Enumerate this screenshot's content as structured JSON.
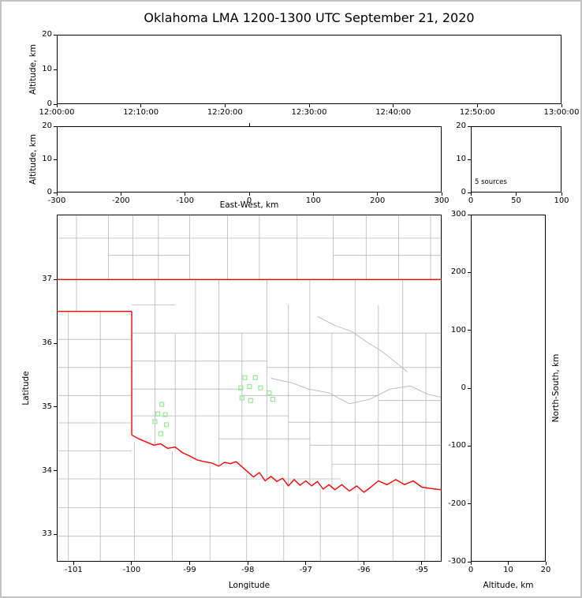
{
  "title": "Oklahoma LMA 1200-1300 UTC September 21, 2020",
  "colors": {
    "county": "#b8b8b8",
    "river": "#b8b8b8",
    "state_border": "#ff0000",
    "marker": "#90EE90",
    "frame": "#000000"
  },
  "chart_data": [
    {
      "id": "time_height",
      "type": "scatter",
      "xlabel": "",
      "ylabel": "Altitude, km",
      "xlim": [
        0,
        3600
      ],
      "ylim": [
        0,
        20
      ],
      "xticks": [
        {
          "v": 0,
          "label": "12:00:00"
        },
        {
          "v": 600,
          "label": "12:10:00"
        },
        {
          "v": 1200,
          "label": "12:20:00"
        },
        {
          "v": 1800,
          "label": "12:30:00"
        },
        {
          "v": 2400,
          "label": "12:40:00"
        },
        {
          "v": 3000,
          "label": "12:50:00"
        },
        {
          "v": 3600,
          "label": "13:00:00"
        }
      ],
      "yticks": [
        0,
        10,
        20
      ],
      "points": []
    },
    {
      "id": "ew_height",
      "type": "scatter",
      "xlabel": "East-West, km",
      "ylabel": "Altitude, km",
      "xlim": [
        -300,
        300
      ],
      "ylim": [
        0,
        20
      ],
      "xticks": [
        -300,
        -200,
        -100,
        0,
        100,
        200,
        300
      ],
      "top_ticks": [
        0
      ],
      "yticks": [
        0,
        10,
        20
      ],
      "points": []
    },
    {
      "id": "alt_histogram",
      "type": "scatter",
      "xlabel": "",
      "ylabel": "",
      "xlim": [
        0,
        100
      ],
      "ylim": [
        0,
        20
      ],
      "xticks": [
        0,
        50,
        100
      ],
      "yticks": [
        0,
        10,
        20
      ],
      "annotation": "5 sources",
      "points": []
    },
    {
      "id": "map",
      "type": "scatter",
      "xlabel": "Longitude",
      "ylabel": "Latitude",
      "xlim": [
        -101.29,
        -94.66
      ],
      "ylim": [
        32.57,
        38.02
      ],
      "xticks": [
        -101,
        -100,
        -99,
        -98,
        -97,
        -96,
        -95
      ],
      "yticks": [
        33,
        34,
        35,
        36,
        37
      ],
      "marker": {
        "shape": "open-square",
        "size": 5
      },
      "points": [
        [
          -98.05,
          35.46
        ],
        [
          -97.87,
          35.46
        ],
        [
          -98.12,
          35.3
        ],
        [
          -97.97,
          35.32
        ],
        [
          -97.78,
          35.3
        ],
        [
          -98.1,
          35.14
        ],
        [
          -97.95,
          35.1
        ],
        [
          -97.63,
          35.22
        ],
        [
          -97.57,
          35.12
        ],
        [
          -99.48,
          35.04
        ],
        [
          -99.55,
          34.89
        ],
        [
          -99.42,
          34.88
        ],
        [
          -99.6,
          34.77
        ],
        [
          -99.4,
          34.72
        ],
        [
          -99.5,
          34.58
        ]
      ],
      "state_border": [
        [
          [
            -101.29,
            37.0
          ],
          [
            -94.66,
            37.0
          ]
        ],
        [
          [
            -101.29,
            36.5
          ],
          [
            -100.0,
            36.5
          ]
        ],
        [
          [
            -100.0,
            36.5
          ],
          [
            -100.0,
            34.56
          ]
        ],
        [
          [
            -100.0,
            34.56
          ],
          [
            -99.88,
            34.5
          ],
          [
            -99.75,
            34.45
          ],
          [
            -99.62,
            34.4
          ],
          [
            -99.5,
            34.42
          ],
          [
            -99.38,
            34.35
          ],
          [
            -99.25,
            34.37
          ],
          [
            -99.12,
            34.28
          ],
          [
            -99.0,
            34.23
          ],
          [
            -98.88,
            34.17
          ],
          [
            -98.75,
            34.14
          ],
          [
            -98.62,
            34.12
          ],
          [
            -98.5,
            34.07
          ],
          [
            -98.4,
            34.13
          ],
          [
            -98.3,
            34.11
          ],
          [
            -98.2,
            34.14
          ],
          [
            -98.1,
            34.06
          ],
          [
            -98.0,
            33.98
          ],
          [
            -97.9,
            33.9
          ],
          [
            -97.8,
            33.97
          ],
          [
            -97.7,
            33.84
          ],
          [
            -97.6,
            33.91
          ],
          [
            -97.5,
            33.83
          ],
          [
            -97.4,
            33.88
          ],
          [
            -97.3,
            33.76
          ],
          [
            -97.2,
            33.86
          ],
          [
            -97.1,
            33.77
          ],
          [
            -97.0,
            33.84
          ],
          [
            -96.9,
            33.76
          ],
          [
            -96.8,
            33.83
          ],
          [
            -96.7,
            33.71
          ],
          [
            -96.6,
            33.78
          ],
          [
            -96.5,
            33.7
          ],
          [
            -96.38,
            33.78
          ],
          [
            -96.25,
            33.68
          ],
          [
            -96.12,
            33.76
          ],
          [
            -96.0,
            33.66
          ],
          [
            -95.88,
            33.74
          ],
          [
            -95.75,
            33.84
          ],
          [
            -95.6,
            33.78
          ],
          [
            -95.45,
            33.86
          ],
          [
            -95.3,
            33.78
          ],
          [
            -95.15,
            33.84
          ],
          [
            -95.0,
            33.74
          ],
          [
            -94.85,
            33.72
          ],
          [
            -94.66,
            33.7
          ]
        ]
      ],
      "county_lines": [
        [
          -100.95,
          37.0,
          -100.95,
          38.02
        ],
        [
          -100.4,
          37.0,
          -100.4,
          38.02
        ],
        [
          -99.98,
          37.0,
          -99.98,
          38.02
        ],
        [
          -99.54,
          37.0,
          -99.54,
          38.02
        ],
        [
          -99.0,
          37.0,
          -99.0,
          38.02
        ],
        [
          -98.35,
          37.0,
          -98.35,
          38.02
        ],
        [
          -97.8,
          37.0,
          -97.8,
          38.02
        ],
        [
          -97.15,
          37.0,
          -97.15,
          38.02
        ],
        [
          -96.53,
          37.0,
          -96.53,
          38.02
        ],
        [
          -95.96,
          37.0,
          -95.96,
          38.02
        ],
        [
          -95.4,
          37.0,
          -95.4,
          38.02
        ],
        [
          -94.85,
          37.0,
          -94.85,
          38.02
        ],
        [
          -101.29,
          37.65,
          -94.66,
          37.65
        ],
        [
          -100.4,
          37.38,
          -99.0,
          37.38
        ],
        [
          -96.53,
          37.38,
          -94.66,
          37.38
        ],
        [
          -100.95,
          36.5,
          -100.95,
          37.0
        ],
        [
          -101.09,
          32.57,
          -101.09,
          36.5
        ],
        [
          -100.54,
          32.57,
          -100.54,
          36.5
        ],
        [
          -101.29,
          36.06,
          -100.0,
          36.06
        ],
        [
          -101.29,
          35.62,
          -100.0,
          35.62
        ],
        [
          -101.29,
          35.18,
          -100.0,
          35.18
        ],
        [
          -101.29,
          34.75,
          -100.0,
          34.75
        ],
        [
          -101.29,
          34.31,
          -100.0,
          34.31
        ],
        [
          -101.29,
          33.87,
          -96.4,
          33.87
        ],
        [
          -101.29,
          33.42,
          -94.66,
          33.42
        ],
        [
          -101.29,
          32.97,
          -94.66,
          32.97
        ],
        [
          -99.95,
          32.57,
          -99.95,
          34.45
        ],
        [
          -99.3,
          32.57,
          -99.3,
          34.3
        ],
        [
          -98.65,
          32.57,
          -98.65,
          34.08
        ],
        [
          -98.02,
          32.57,
          -98.02,
          33.95
        ],
        [
          -97.38,
          32.57,
          -97.38,
          33.8
        ],
        [
          -96.75,
          32.57,
          -96.75,
          33.72
        ],
        [
          -96.1,
          32.57,
          -96.1,
          33.64
        ],
        [
          -95.5,
          32.57,
          -95.5,
          33.78
        ],
        [
          -94.95,
          32.57,
          -94.95,
          33.7
        ],
        [
          -99.6,
          34.42,
          -99.6,
          37.0
        ],
        [
          -99.25,
          34.3,
          -99.25,
          36.16
        ],
        [
          -98.9,
          34.18,
          -98.9,
          37.0
        ],
        [
          -98.5,
          34.08,
          -98.5,
          37.0
        ],
        [
          -98.1,
          34.06,
          -98.1,
          36.16
        ],
        [
          -97.67,
          33.86,
          -97.67,
          37.0
        ],
        [
          -97.3,
          33.78,
          -97.3,
          36.6
        ],
        [
          -96.93,
          33.78,
          -96.93,
          37.0
        ],
        [
          -96.55,
          33.72,
          -96.55,
          36.16
        ],
        [
          -96.15,
          33.68,
          -96.15,
          37.0
        ],
        [
          -95.75,
          33.85,
          -95.75,
          36.6
        ],
        [
          -95.33,
          33.78,
          -95.33,
          37.0
        ],
        [
          -94.93,
          33.7,
          -94.93,
          36.16
        ],
        [
          -100.0,
          36.16,
          -94.66,
          36.16
        ],
        [
          -100.0,
          36.6,
          -99.25,
          36.6
        ],
        [
          -100.0,
          35.72,
          -97.67,
          35.72
        ],
        [
          -97.67,
          35.62,
          -94.66,
          35.62
        ],
        [
          -100.0,
          35.28,
          -98.1,
          35.28
        ],
        [
          -98.1,
          35.18,
          -95.75,
          35.18
        ],
        [
          -95.75,
          35.1,
          -94.66,
          35.1
        ],
        [
          -100.0,
          34.86,
          -97.3,
          34.86
        ],
        [
          -97.3,
          34.76,
          -94.66,
          34.76
        ],
        [
          -98.5,
          34.5,
          -96.93,
          34.5
        ],
        [
          -96.93,
          34.4,
          -94.66,
          34.4
        ],
        [
          -96.55,
          34.1,
          -94.66,
          34.1
        ]
      ],
      "rivers": [
        [
          [
            -97.6,
            35.45
          ],
          [
            -97.25,
            35.38
          ],
          [
            -96.95,
            35.28
          ],
          [
            -96.6,
            35.22
          ],
          [
            -96.25,
            35.05
          ],
          [
            -95.9,
            35.12
          ],
          [
            -95.55,
            35.28
          ],
          [
            -95.2,
            35.33
          ],
          [
            -94.9,
            35.2
          ],
          [
            -94.66,
            35.15
          ]
        ],
        [
          [
            -96.8,
            36.42
          ],
          [
            -96.5,
            36.28
          ],
          [
            -96.2,
            36.18
          ],
          [
            -95.95,
            36.02
          ],
          [
            -95.7,
            35.88
          ],
          [
            -95.45,
            35.7
          ],
          [
            -95.25,
            35.55
          ]
        ]
      ]
    },
    {
      "id": "ns_height",
      "type": "scatter",
      "xlabel": "Altitude, km",
      "ylabel": "North-South, km",
      "xlim": [
        0,
        20
      ],
      "ylim": [
        -300,
        300
      ],
      "xticks": [
        0,
        10,
        20
      ],
      "yticks": [
        300,
        200,
        100,
        0,
        -100,
        -200,
        -300
      ],
      "points": []
    }
  ]
}
